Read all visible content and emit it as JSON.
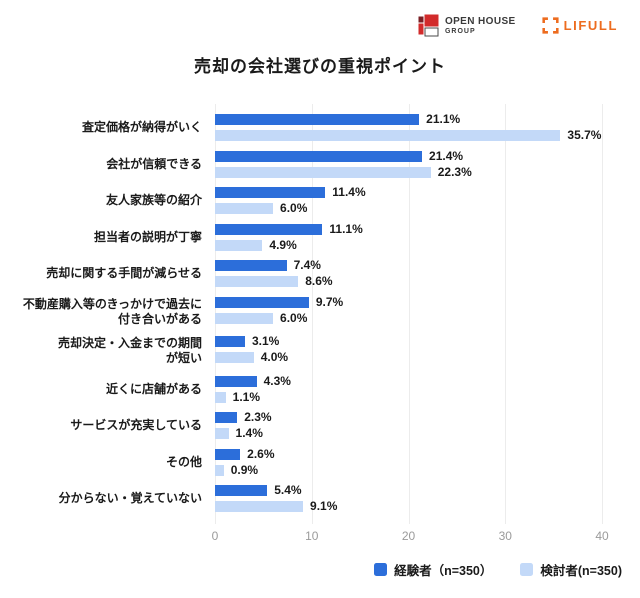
{
  "header": {
    "open_house": {
      "line1": "OPEN HOUSE",
      "line2": "GROUP"
    },
    "lifull": {
      "text": "LIFULL"
    }
  },
  "chart_data": {
    "type": "bar",
    "orientation": "horizontal",
    "title": "売却の会社選びの重視ポイント",
    "categories": [
      "査定価格が納得がいく",
      "会社が信頼できる",
      "友人家族等の紹介",
      "担当者の説明が丁寧",
      "売却に関する手間が減らせる",
      "不動産購入等のきっかけで過去に\n付き合いがある",
      "売却決定・入金までの期間\nが短い",
      "近くに店舗がある",
      "サービスが充実している",
      "その他",
      "分からない・覚えていない"
    ],
    "series": [
      {
        "name": "経験者（n=350）",
        "color": "#2C6EDA",
        "values": [
          21.1,
          21.4,
          11.4,
          11.1,
          7.4,
          9.7,
          3.1,
          4.3,
          2.3,
          2.6,
          5.4
        ]
      },
      {
        "name": "検討者(n=350)",
        "color": "#C3D9F8",
        "values": [
          35.7,
          22.3,
          6.0,
          4.9,
          8.6,
          6.0,
          4.0,
          1.1,
          1.4,
          0.9,
          9.1
        ]
      }
    ],
    "xlim": [
      0,
      40
    ],
    "xticks": [
      0,
      10,
      20,
      30,
      40
    ],
    "value_suffix": "%",
    "grid": true,
    "legend_position": "bottom-right"
  },
  "colors": {
    "experienced_bar": "#2C6EDA",
    "considering_bar": "#C3D9F8",
    "gridline": "#ECECEC",
    "axis_text": "#9B9B9B",
    "open_house_red": "#D22B2B",
    "open_house_dark_red": "#7A1F24",
    "lifull_orange": "#ED6C1F"
  }
}
